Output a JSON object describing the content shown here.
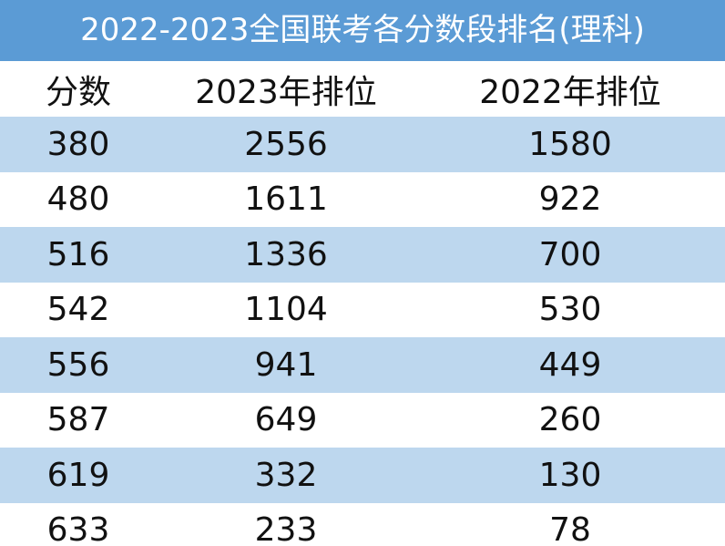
{
  "table": {
    "title": "2022-2023全国联考各分数段排名(理科)",
    "headers": [
      "分数",
      "2023年排位",
      "2022年排位"
    ],
    "rows": [
      [
        "380",
        "2556",
        "1580"
      ],
      [
        "480",
        "1611",
        "922"
      ],
      [
        "516",
        "1336",
        "700"
      ],
      [
        "542",
        "1104",
        "530"
      ],
      [
        "556",
        "941",
        "449"
      ],
      [
        "587",
        "649",
        "260"
      ],
      [
        "619",
        "332",
        "130"
      ],
      [
        "633",
        "233",
        "78"
      ]
    ]
  },
  "colors": {
    "title_bg": "#5b9bd5",
    "title_text": "#ffffff",
    "band_bg": "#bdd7ee",
    "plain_bg": "#ffffff",
    "text": "#111111"
  }
}
